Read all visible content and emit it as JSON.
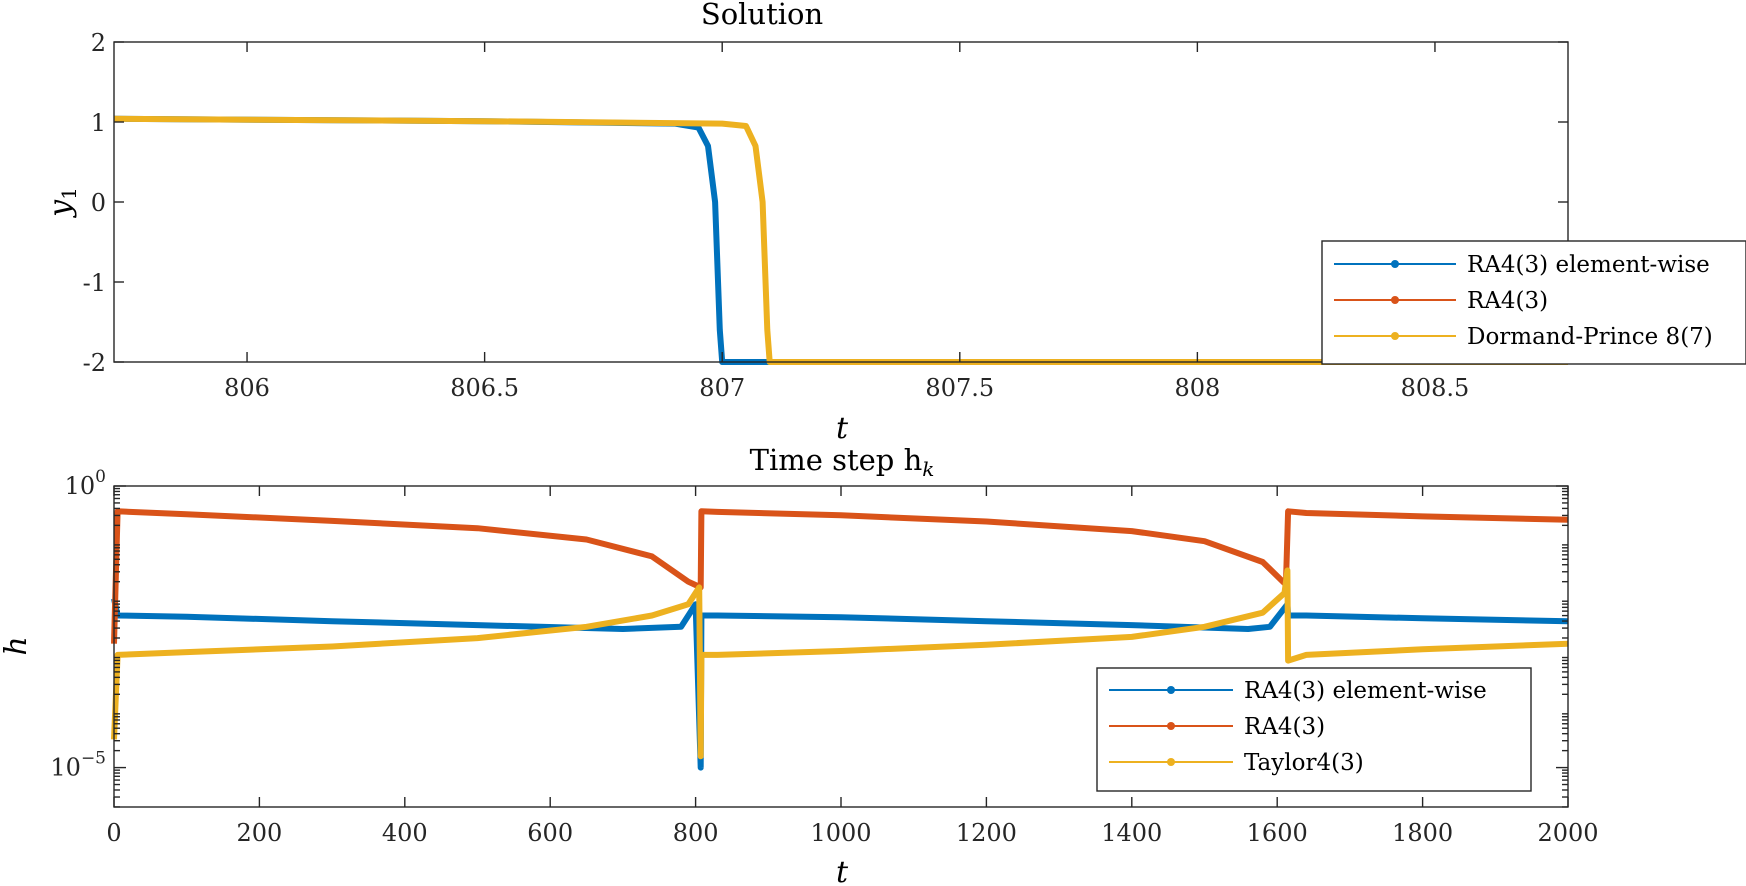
{
  "colors": {
    "blue": "#0072BD",
    "red": "#D95319",
    "yellow": "#EDB120",
    "axis": "#262626"
  },
  "chart_data": [
    {
      "type": "line",
      "title": "Solution",
      "xlabel": "t",
      "ylabel_base": "y",
      "ylabel_sub": "1",
      "xlim": [
        805.72,
        808.78
      ],
      "ylim": [
        -2,
        2
      ],
      "xticks": [
        806,
        806.5,
        807,
        807.5,
        808,
        808.5
      ],
      "xtick_labels": [
        "806",
        "806.5",
        "807",
        "807.5",
        "808",
        "808.5"
      ],
      "yticks": [
        2,
        1,
        0,
        -1,
        -2
      ],
      "ytick_labels": [
        "2",
        "1",
        "0",
        "-1",
        "-2"
      ],
      "legend_position": "bottom-right",
      "legend": [
        "RA4(3) element-wise",
        "RA4(3)",
        "Dormand-Prince 8(7)"
      ],
      "series": [
        {
          "name": "RA4(3) element-wise",
          "color": "#0072BD",
          "x": [
            805.72,
            806.5,
            806.9,
            806.95,
            806.97,
            806.985,
            806.995,
            807.0,
            807.03,
            808.78
          ],
          "y": [
            1.04,
            1.01,
            0.98,
            0.93,
            0.7,
            0.0,
            -1.6,
            -2.0,
            -2.0,
            -2.0
          ]
        },
        {
          "name": "RA4(3)",
          "color": "#D95319",
          "x": [],
          "y": []
        },
        {
          "name": "Dormand-Prince 8(7)",
          "color": "#EDB120",
          "x": [
            805.72,
            806.5,
            807.0,
            807.05,
            807.07,
            807.085,
            807.095,
            807.1,
            807.13,
            808.78
          ],
          "y": [
            1.04,
            1.01,
            0.98,
            0.95,
            0.7,
            0.0,
            -1.6,
            -2.0,
            -2.0,
            -2.0
          ]
        }
      ]
    },
    {
      "type": "line",
      "title_base": "Time step h",
      "title_sub": "k",
      "xlabel": "t",
      "ylabel": "h",
      "yscale": "log",
      "xlim": [
        0,
        2000
      ],
      "ylim_log10": [
        -5.7,
        0
      ],
      "xticks": [
        0,
        200,
        400,
        600,
        800,
        1000,
        1200,
        1400,
        1600,
        1800,
        2000
      ],
      "xtick_labels": [
        "0",
        "200",
        "400",
        "600",
        "800",
        "1000",
        "1200",
        "1400",
        "1600",
        "1800",
        "2000"
      ],
      "yticks_log10": [
        0,
        -5
      ],
      "ytick_base": "10",
      "ytick_exponents": [
        "0",
        "−5"
      ],
      "legend_position": "bottom-right",
      "legend": [
        "RA4(3) element-wise",
        "RA4(3)",
        "Taylor4(3)"
      ],
      "series": [
        {
          "name": "RA4(3) element-wise",
          "color": "#0072BD",
          "x": [
            0,
            5,
            100,
            300,
            500,
            700,
            780,
            800,
            807,
            808,
            830,
            1000,
            1200,
            1400,
            1560,
            1590,
            1614,
            1615,
            1640,
            1800,
            2000
          ],
          "y_log10": [
            -2.0,
            -2.3,
            -2.32,
            -2.4,
            -2.47,
            -2.54,
            -2.5,
            -2.1,
            -5.0,
            -2.3,
            -2.3,
            -2.33,
            -2.4,
            -2.47,
            -2.54,
            -2.5,
            -2.1,
            -2.3,
            -2.3,
            -2.35,
            -2.4
          ]
        },
        {
          "name": "RA4(3)",
          "color": "#D95319",
          "x": [
            0,
            5,
            100,
            300,
            500,
            650,
            740,
            790,
            807,
            808,
            830,
            1000,
            1200,
            1400,
            1500,
            1580,
            1612,
            1615,
            1640,
            1800,
            2000
          ],
          "y_log10": [
            -2.8,
            -0.45,
            -0.5,
            -0.62,
            -0.75,
            -0.95,
            -1.25,
            -1.7,
            -1.8,
            -0.45,
            -0.46,
            -0.52,
            -0.63,
            -0.8,
            -0.98,
            -1.35,
            -1.75,
            -0.45,
            -0.48,
            -0.54,
            -0.6
          ]
        },
        {
          "name": "Taylor4(3)",
          "color": "#EDB120",
          "x": [
            0,
            5,
            100,
            300,
            500,
            650,
            740,
            790,
            805,
            807,
            808,
            830,
            1000,
            1200,
            1400,
            1500,
            1580,
            1610,
            1614,
            1615,
            1640,
            1800,
            2000
          ],
          "y_log10": [
            -4.5,
            -3.0,
            -2.95,
            -2.85,
            -2.7,
            -2.5,
            -2.3,
            -2.1,
            -1.8,
            -4.8,
            -3.0,
            -3.0,
            -2.93,
            -2.82,
            -2.68,
            -2.5,
            -2.25,
            -1.9,
            -1.5,
            -3.1,
            -3.0,
            -2.9,
            -2.8
          ]
        }
      ]
    }
  ]
}
